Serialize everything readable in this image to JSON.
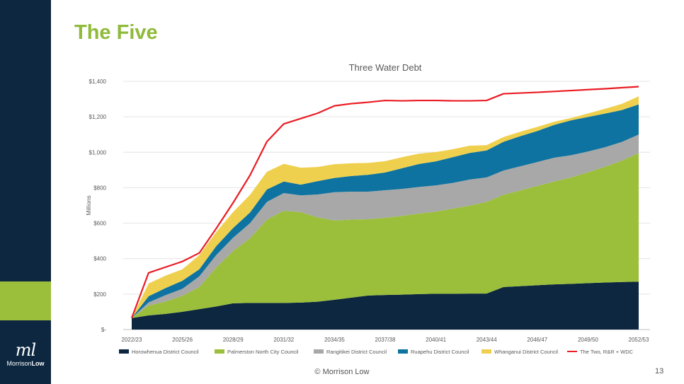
{
  "slide": {
    "title": "The Five",
    "footer": "© Morrison Low",
    "page_number": "13",
    "logo": {
      "mark": "ml",
      "name_light": "Morrison",
      "name_bold": "Low"
    }
  },
  "colors": {
    "sidebar": "#0d2740",
    "sidebar_accent": "#9bbf3b",
    "title": "#8fba3a"
  },
  "chart_data": {
    "type": "area",
    "stacked": true,
    "title": "Three Water Debt",
    "ylabel": "Millions",
    "xlabel": "",
    "ylim": [
      0,
      1400
    ],
    "y_ticks": [
      0,
      200,
      400,
      600,
      800,
      1000,
      1200,
      1400
    ],
    "y_tick_labels": [
      "$-",
      "$200",
      "$400",
      "$600",
      "$800",
      "$1,000",
      "$1,200",
      "$1,400"
    ],
    "grid": true,
    "legend": "bottom",
    "categories": [
      "2022/23",
      "2023/24",
      "2024/25",
      "2025/26",
      "2026/27",
      "2027/28",
      "2028/29",
      "2029/30",
      "2030/31",
      "2031/32",
      "2032/33",
      "2033/34",
      "2034/35",
      "2035/36",
      "2036/37",
      "2037/38",
      "2038/39",
      "2039/40",
      "2040/41",
      "2041/42",
      "2042/43",
      "2043/44",
      "2044/45",
      "2045/46",
      "2046/47",
      "2047/48",
      "2048/49",
      "2049/50",
      "2050/51",
      "2051/52",
      "2052/53"
    ],
    "x_tick_labels": [
      "2022/23",
      "",
      "",
      "2025/26",
      "",
      "",
      "2028/29",
      "",
      "",
      "2031/32",
      "",
      "",
      "2034/35",
      "",
      "",
      "2037/38",
      "",
      "",
      "2040/41",
      "",
      "",
      "2043/44",
      "",
      "",
      "2046/47",
      "",
      "",
      "2049/50",
      "",
      "",
      "2052/53"
    ],
    "series": [
      {
        "name": "Horowhenua District Council",
        "color": "#0d2740",
        "type": "area",
        "values": [
          65,
          80,
          88,
          100,
          115,
          130,
          148,
          150,
          150,
          150,
          152,
          157,
          168,
          180,
          192,
          195,
          197,
          200,
          202,
          202,
          203,
          203,
          240,
          245,
          250,
          255,
          258,
          262,
          265,
          268,
          270
        ]
      },
      {
        "name": "Palmerston North City Council",
        "color": "#9bbf3b",
        "type": "area",
        "values": [
          0,
          55,
          70,
          90,
          125,
          220,
          295,
          365,
          470,
          520,
          510,
          475,
          447,
          440,
          430,
          435,
          444,
          454,
          463,
          480,
          496,
          517,
          520,
          540,
          560,
          580,
          600,
          625,
          653,
          685,
          725
        ]
      },
      {
        "name": "Rangitikei District Council",
        "color": "#a8a8a8",
        "type": "area",
        "values": [
          0,
          18,
          36,
          40,
          60,
          70,
          75,
          85,
          100,
          100,
          95,
          130,
          160,
          158,
          156,
          156,
          152,
          150,
          148,
          145,
          147,
          138,
          137,
          136,
          135,
          134,
          125,
          117,
          110,
          105,
          105
        ]
      },
      {
        "name": "Ruapehu District Council",
        "color": "#0e73a0",
        "type": "area",
        "values": [
          0,
          35,
          40,
          45,
          40,
          50,
          55,
          60,
          70,
          65,
          60,
          75,
          80,
          88,
          95,
          100,
          117,
          130,
          136,
          145,
          150,
          152,
          162,
          170,
          175,
          185,
          197,
          195,
          190,
          180,
          170
        ]
      },
      {
        "name": "Whanganui District Council",
        "color": "#efd04e",
        "type": "area",
        "values": [
          0,
          72,
          70,
          65,
          80,
          80,
          90,
          100,
          100,
          100,
          96,
          80,
          78,
          72,
          67,
          64,
          62,
          58,
          52,
          45,
          41,
          30,
          27,
          25,
          23,
          18,
          13,
          20,
          27,
          35,
          45
        ]
      },
      {
        "name": "The Two, R&R + WDC",
        "color": "#ea1c24",
        "type": "line",
        "values": [
          65,
          320,
          352,
          384,
          432,
          570,
          715,
          870,
          1060,
          1160,
          1190,
          1220,
          1262,
          1274,
          1282,
          1292,
          1290,
          1292,
          1292,
          1290,
          1290,
          1292,
          1330,
          1334,
          1338,
          1343,
          1348,
          1353,
          1358,
          1364,
          1370
        ]
      }
    ]
  }
}
